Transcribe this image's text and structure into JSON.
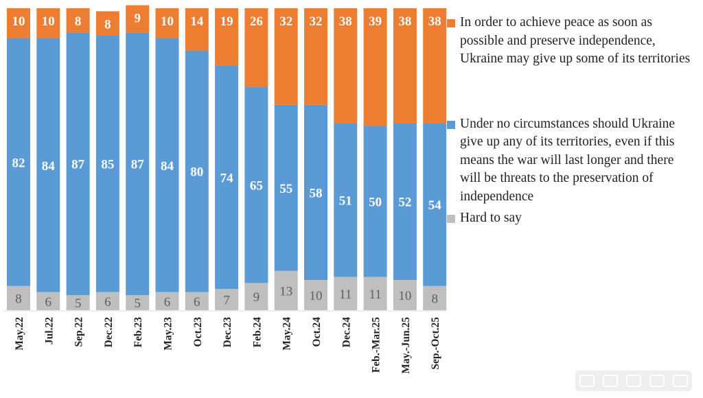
{
  "chart_data": {
    "type": "stacked-bar",
    "categories": [
      "May.22",
      "Jul.22",
      "Sep.22",
      "Dec.22",
      "Feb.23",
      "May.23",
      "Oct.23",
      "Dec.23",
      "Feb.24",
      "May.24",
      "Oct.24",
      "Dec.24",
      "Feb.-Mar.25",
      "May.-Jun.25",
      "Sep.-Oct.25"
    ],
    "series": [
      {
        "name": "Hard to say",
        "color": "#bfbfbf",
        "label_color": "#5f5f5f",
        "values": [
          8,
          6,
          5,
          6,
          5,
          6,
          6,
          7,
          9,
          13,
          10,
          11,
          11,
          10,
          8
        ]
      },
      {
        "name": "Under no circumstances should Ukraine give up any of its territories, even if this means the war will last longer and there will be threats to the preservation of independence",
        "color": "#5b9bd5",
        "label_color": "#ffffff",
        "values": [
          82,
          84,
          87,
          85,
          87,
          84,
          80,
          74,
          65,
          55,
          58,
          51,
          50,
          52,
          54
        ]
      },
      {
        "name": "In order to achieve peace as soon as possible and preserve independence, Ukraine may give up some of its territories",
        "color": "#ed7d31",
        "label_color": "#ffffff",
        "values": [
          10,
          10,
          8,
          8,
          9,
          10,
          14,
          19,
          26,
          32,
          32,
          38,
          39,
          38,
          38
        ]
      }
    ],
    "legend_position": "right",
    "legend_order": [
      2,
      1,
      0
    ],
    "ylim": [
      0,
      100
    ],
    "grid": false
  }
}
